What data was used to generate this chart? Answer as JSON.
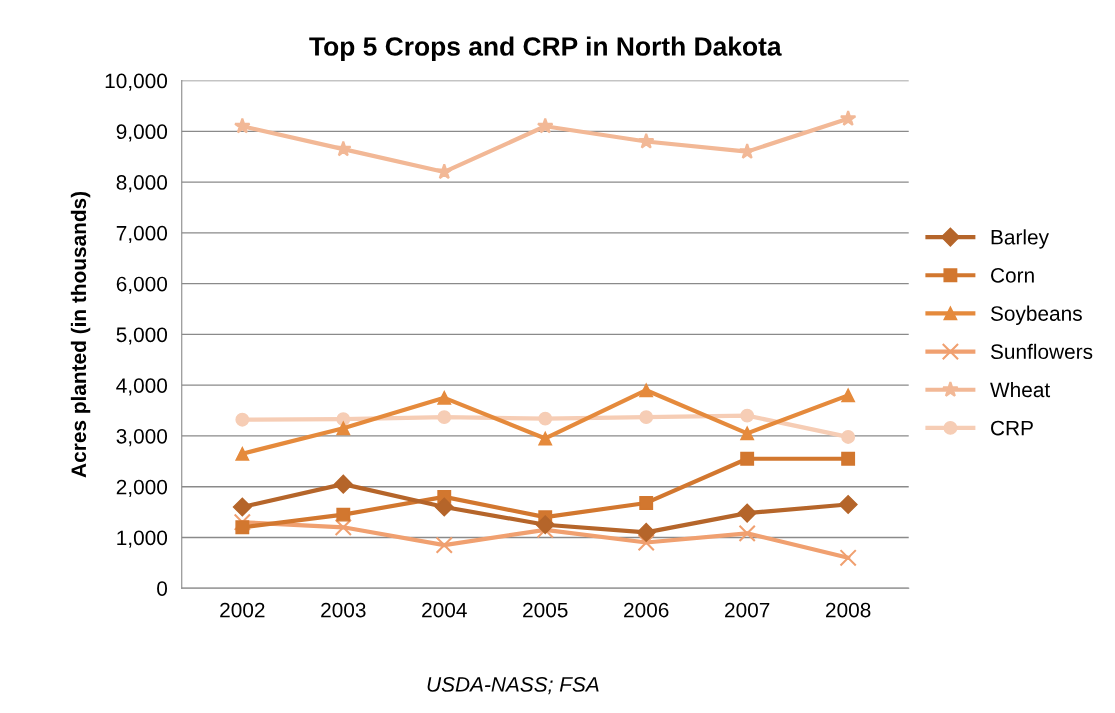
{
  "chart_data": {
    "type": "line",
    "title": "Top 5 Crops and CRP in North Dakota",
    "ylabel": "Acres planted (in thousands)",
    "categories": [
      "2002",
      "2003",
      "2004",
      "2005",
      "2006",
      "2007",
      "2008"
    ],
    "series": [
      {
        "name": "Barley",
        "color": "#b5652a",
        "marker": "diamond",
        "values": [
          1600,
          2050,
          1600,
          1250,
          1100,
          1480,
          1650
        ]
      },
      {
        "name": "Corn",
        "color": "#d2772f",
        "marker": "square",
        "values": [
          1200,
          1450,
          1800,
          1400,
          1680,
          2550,
          2550
        ]
      },
      {
        "name": "Soybeans",
        "color": "#e58a3c",
        "marker": "triangle",
        "values": [
          2650,
          3150,
          3750,
          2950,
          3900,
          3050,
          3800
        ]
      },
      {
        "name": "Sunflowers",
        "color": "#f0a070",
        "marker": "cross",
        "values": [
          1300,
          1200,
          850,
          1150,
          900,
          1080,
          600
        ]
      },
      {
        "name": "Wheat",
        "color": "#f2b896",
        "marker": "star",
        "values": [
          9100,
          8650,
          8200,
          9100,
          8800,
          8600,
          9250
        ]
      },
      {
        "name": "CRP",
        "color": "#f6cdb5",
        "marker": "circle",
        "values": [
          3320,
          3330,
          3370,
          3340,
          3370,
          3400,
          2980
        ]
      }
    ],
    "ylim": [
      0,
      10000
    ],
    "yticks": [
      {
        "value": 0,
        "label": "0"
      },
      {
        "value": 1000,
        "label": "1,000"
      },
      {
        "value": 2000,
        "label": "2,000"
      },
      {
        "value": 3000,
        "label": "3,000"
      },
      {
        "value": 4000,
        "label": "4,000"
      },
      {
        "value": 5000,
        "label": "5,000"
      },
      {
        "value": 6000,
        "label": "6,000"
      },
      {
        "value": 7000,
        "label": "7,000"
      },
      {
        "value": 8000,
        "label": "8,000"
      },
      {
        "value": 9000,
        "label": "9,000"
      },
      {
        "value": 10000,
        "label": "10,000"
      }
    ],
    "grid": "y",
    "legend": "right",
    "annotations": [
      "USDA-NASS; FSA"
    ]
  }
}
